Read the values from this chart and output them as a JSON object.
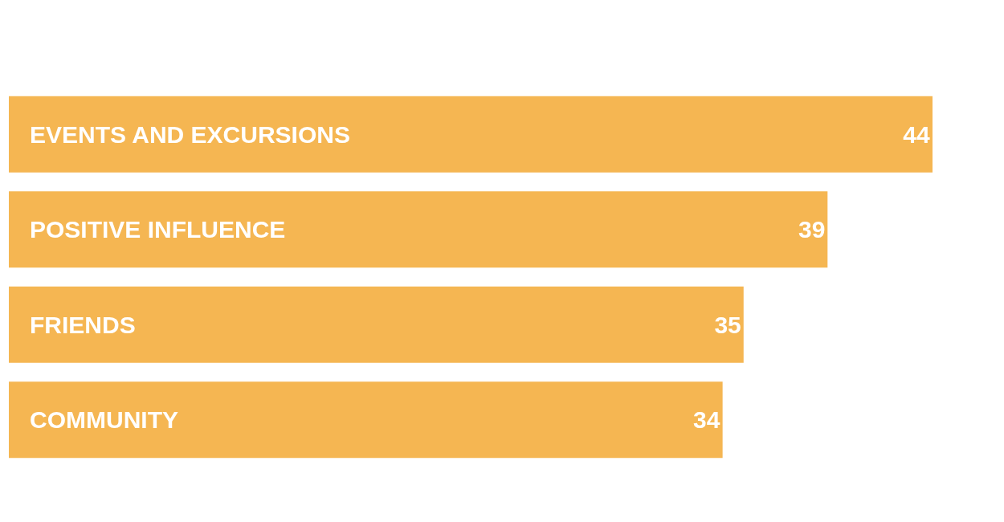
{
  "chart_data": {
    "type": "bar",
    "orientation": "horizontal",
    "categories": [
      "EVENTS AND EXCURSIONS",
      "POSITIVE INFLUENCE",
      "FRIENDS",
      "COMMUNITY"
    ],
    "values": [
      44,
      39,
      35,
      34
    ],
    "color": "#f5b652",
    "data_labels": true
  }
}
